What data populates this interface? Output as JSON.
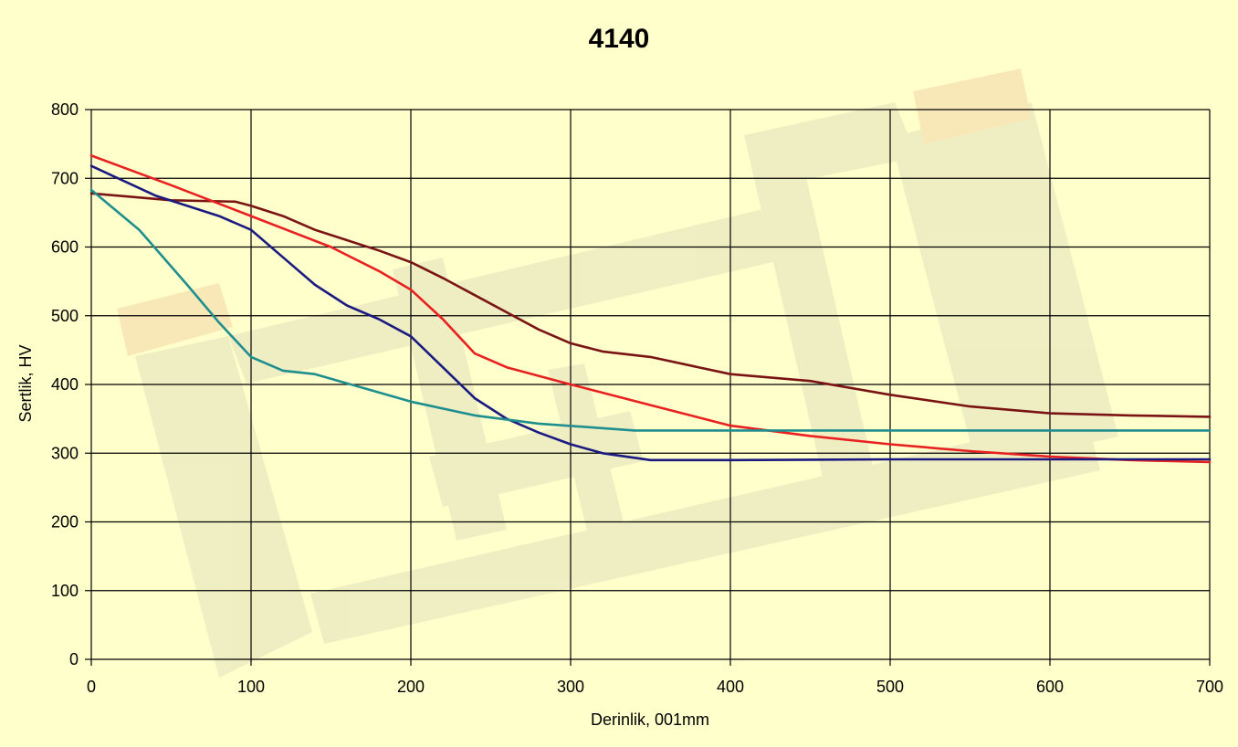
{
  "chart_data": {
    "type": "line",
    "title": "4140",
    "xlabel": "Derinlik, 001mm",
    "ylabel": "Sertlik, HV",
    "xlim": [
      0,
      700
    ],
    "ylim": [
      0,
      800
    ],
    "xticks": [
      0,
      100,
      200,
      300,
      400,
      500,
      600,
      700
    ],
    "yticks": [
      0,
      100,
      200,
      300,
      400,
      500,
      600,
      700,
      800
    ],
    "grid": true,
    "legend": "none",
    "series": [
      {
        "color": "#7A1414",
        "x": [
          0,
          50,
          90,
          100,
          120,
          140,
          160,
          180,
          200,
          220,
          240,
          260,
          280,
          300,
          320,
          350,
          400,
          450,
          500,
          550,
          600,
          650,
          700
        ],
        "y": [
          678,
          668,
          666,
          660,
          645,
          625,
          610,
          595,
          578,
          555,
          530,
          505,
          480,
          460,
          448,
          440,
          415,
          405,
          385,
          368,
          358,
          355,
          353
        ]
      },
      {
        "color": "#E82020",
        "x": [
          0,
          50,
          100,
          150,
          180,
          200,
          220,
          240,
          260,
          300,
          350,
          400,
          450,
          500,
          550,
          600,
          650,
          700
        ],
        "y": [
          733,
          690,
          645,
          600,
          565,
          538,
          495,
          445,
          425,
          400,
          370,
          340,
          325,
          313,
          303,
          295,
          290,
          287
        ]
      },
      {
        "color": "#1A1A80",
        "x": [
          0,
          40,
          80,
          100,
          120,
          140,
          160,
          180,
          200,
          220,
          240,
          260,
          280,
          300,
          320,
          350,
          400,
          500,
          600,
          700
        ],
        "y": [
          718,
          675,
          645,
          625,
          585,
          545,
          515,
          495,
          470,
          425,
          380,
          350,
          330,
          313,
          300,
          290,
          290,
          291,
          291,
          291
        ]
      },
      {
        "color": "#1F8E8E",
        "x": [
          0,
          30,
          60,
          80,
          100,
          120,
          140,
          170,
          200,
          240,
          280,
          340,
          400,
          500,
          600,
          700
        ],
        "y": [
          683,
          625,
          545,
          490,
          440,
          420,
          415,
          395,
          375,
          355,
          343,
          333,
          333,
          333,
          333,
          333
        ]
      }
    ]
  }
}
